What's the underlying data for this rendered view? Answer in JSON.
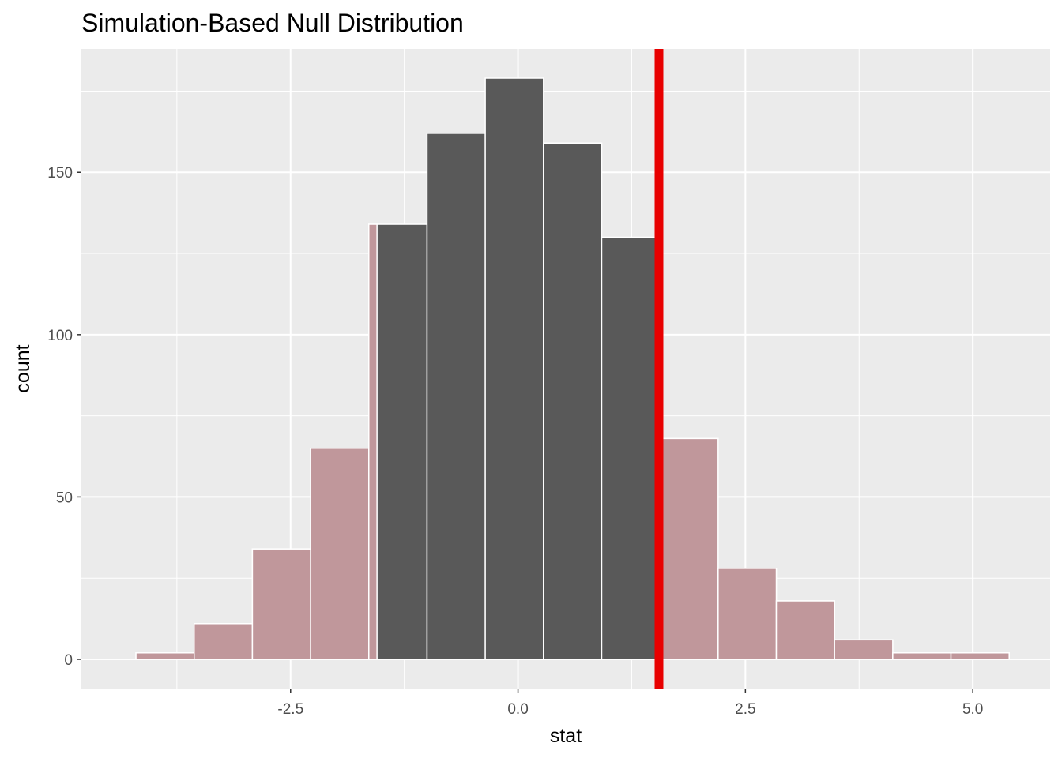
{
  "chart_data": {
    "type": "bar",
    "title": "Simulation-Based Null Distribution",
    "xlabel": "stat",
    "ylabel": "count",
    "xlim": [
      -4.8,
      5.85
    ],
    "ylim": [
      -9,
      188
    ],
    "x_ticks": [
      -2.5,
      0.0,
      2.5,
      5.0
    ],
    "x_tick_labels": [
      "-2.5",
      "0.0",
      "2.5",
      "5.0"
    ],
    "y_ticks": [
      0,
      50,
      100,
      150
    ],
    "y_tick_labels": [
      "0",
      "50",
      "100",
      "150"
    ],
    "y_minor": [
      25,
      75,
      125,
      175
    ],
    "grid": true,
    "bars": [
      {
        "x0": -4.2,
        "x1": -3.56,
        "count": 2,
        "shaded": true
      },
      {
        "x0": -3.56,
        "x1": -2.92,
        "count": 11,
        "shaded": true
      },
      {
        "x0": -2.92,
        "x1": -2.28,
        "count": 34,
        "shaded": true
      },
      {
        "x0": -2.28,
        "x1": -1.64,
        "count": 65,
        "shaded": true
      },
      {
        "x0": -1.64,
        "x1": -1.0,
        "count": 134,
        "shaded": false
      },
      {
        "x0": -1.0,
        "x1": -0.36,
        "count": 162,
        "shaded": false
      },
      {
        "x0": -0.36,
        "x1": 0.28,
        "count": 179,
        "shaded": false
      },
      {
        "x0": 0.28,
        "x1": 0.92,
        "count": 159,
        "shaded": false
      },
      {
        "x0": 0.92,
        "x1": 1.56,
        "count": 130,
        "shaded": false
      },
      {
        "x0": 1.56,
        "x1": 2.2,
        "count": 68,
        "shaded": true
      },
      {
        "x0": 2.2,
        "x1": 2.84,
        "count": 28,
        "shaded": true
      },
      {
        "x0": 2.84,
        "x1": 3.48,
        "count": 18,
        "shaded": true
      },
      {
        "x0": 3.48,
        "x1": 4.12,
        "count": 6,
        "shaded": true
      },
      {
        "x0": 4.12,
        "x1": 4.76,
        "count": 2,
        "shaded": true
      },
      {
        "x0": 4.76,
        "x1": 5.4,
        "count": 2,
        "shaded": true
      }
    ],
    "shade_region": {
      "left_below": -1.55,
      "right_above": 1.55
    },
    "observed_stat": 1.55,
    "colors": {
      "panel": "#ebebeb",
      "grid": "#ffffff",
      "bar": "#595959",
      "shade": "#c0979b",
      "observed_line": "#e80000",
      "bar_outline": "#ffffff"
    }
  }
}
